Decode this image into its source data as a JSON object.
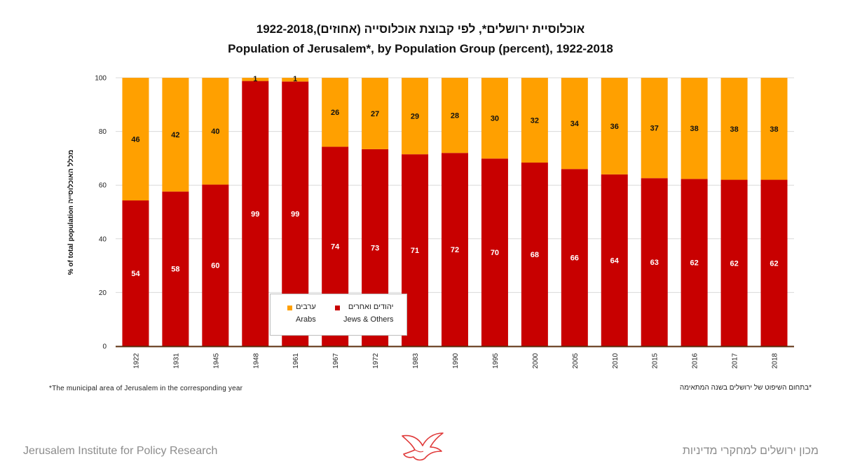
{
  "title_he": "אוכלוסיית ירושלים*, לפי קבוצת אוכלוסייה (אחוזים),1922-2018",
  "title_en": "Population of Jerusalem*, by Population Group (percent), 1922-2018",
  "footnote_en": "*The municipal area of Jerusalem in the corresponding year",
  "footnote_he": "*בתחום השיפוט של ירושלים בשנה המתאימה",
  "org_en": "Jerusalem Institute for Policy Research",
  "org_he": "מכון ירושלים למחקרי מדיניות",
  "legend": {
    "arabs_he": "ערבים",
    "arabs_en": "Arabs",
    "jews_he": "יהודים ואחרים",
    "jews_en": "Jews & Others"
  },
  "chart_data": {
    "type": "bar",
    "stacked": true,
    "ylabel": "% of total population  מכלל האוכלוסייה",
    "ylim": [
      0,
      100
    ],
    "yticks": [
      0,
      20,
      40,
      60,
      80,
      100
    ],
    "grid": true,
    "legend_position": "bottom-left (inside plot)",
    "categories": [
      "1922",
      "1931",
      "1945",
      "1948",
      "1961",
      "1967",
      "1972",
      "1983",
      "1990",
      "1995",
      "2000",
      "2005",
      "2010",
      "2015",
      "2016",
      "2017",
      "2018"
    ],
    "series": [
      {
        "name": "Jews & Others",
        "color": "#c80000",
        "values": [
          54,
          58,
          60,
          99,
          99,
          74,
          73,
          71,
          72,
          70,
          68,
          66,
          64,
          63,
          62,
          62,
          62
        ],
        "plotted": [
          54.3,
          57.6,
          60.2,
          98.8,
          98.6,
          74.3,
          73.4,
          71.5,
          72.0,
          69.9,
          68.4,
          66.0,
          64.0,
          62.6,
          62.3,
          62.0,
          62.0
        ]
      },
      {
        "name": "Arabs",
        "color": "#ffa000",
        "values": [
          46,
          42,
          40,
          1,
          1,
          26,
          27,
          29,
          28,
          30,
          32,
          34,
          36,
          37,
          38,
          38,
          38
        ],
        "plotted": [
          45.7,
          42.4,
          39.8,
          1.2,
          1.4,
          25.7,
          26.6,
          28.5,
          28.0,
          30.1,
          31.6,
          34.0,
          36.0,
          37.4,
          37.7,
          38.0,
          38.0
        ]
      }
    ]
  }
}
